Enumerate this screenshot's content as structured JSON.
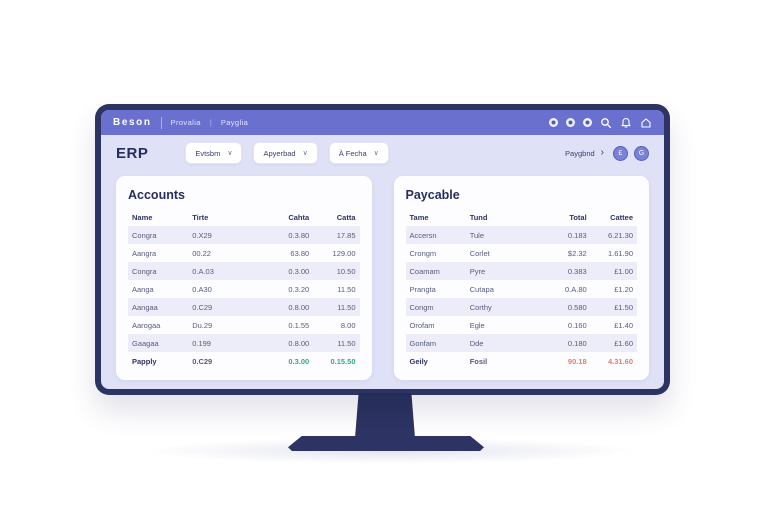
{
  "app": {
    "logo": "Beson",
    "breadcrumbs": [
      "Provalia",
      "Payglia"
    ],
    "topbar_icon_names": [
      "avatar-dot",
      "avatar-dot",
      "avatar-dot",
      "search-icon",
      "bell-icon",
      "home-icon"
    ]
  },
  "icons": {
    "chevron_down": "∨",
    "chevron_right": "›",
    "breadcrumb_separator": "|",
    "circle_button_a_glyph": "£",
    "circle_button_b_glyph": "G"
  },
  "toolbar": {
    "title": "ERP",
    "dropdowns": [
      {
        "label": "Evtsbm"
      },
      {
        "label": "Apyerbad"
      },
      {
        "label": "À Fecha"
      }
    ],
    "link_label": "Paygbnd"
  },
  "panels": {
    "accounts": {
      "title": "Accounts",
      "table": {
        "columns": [
          "Name",
          "Tirte",
          "Cahta",
          "Catta"
        ],
        "rows": [
          [
            "Congra",
            "0.X29",
            "0.3.80",
            "17.85"
          ],
          [
            "Aangra",
            "00.22",
            "63.80",
            "129.00"
          ],
          [
            "Congra",
            "0.A.03",
            "0.3.00",
            "10.50"
          ],
          [
            "Aanga",
            "0.A30",
            "0.3.20",
            "11.50"
          ],
          [
            "Aangaa",
            "0.C29",
            "0.8.00",
            "11.50"
          ],
          [
            "Aarogaa",
            "Du.29",
            "0.1.55",
            "8.00"
          ],
          [
            "Gaagaa",
            "0.199",
            "0.8.00",
            "11.50"
          ],
          [
            "Papply",
            "0.C29",
            "0.3.00",
            "0.15.50"
          ]
        ],
        "total_color": "#2fa98c"
      }
    },
    "payable": {
      "title": "Paycable",
      "table": {
        "columns": [
          "Tame",
          "Tund",
          "Total",
          "Cattee"
        ],
        "rows": [
          [
            "Accersn",
            "Tule",
            "0.183",
            "6.21.30"
          ],
          [
            "Crongm",
            "Corlet",
            "$2.32",
            "1.61.90"
          ],
          [
            "Coamam",
            "Pyre",
            "0.383",
            "£1.00"
          ],
          [
            "Prangta",
            "Cutapa",
            "0.A.80",
            "£1.20"
          ],
          [
            "Congm",
            "Corthy",
            "0.580",
            "£1.50"
          ],
          [
            "Orofam",
            "Egle",
            "0.160",
            "£1.40"
          ],
          [
            "Gonfam",
            "Dde",
            "0.180",
            "£1.60"
          ],
          [
            "Geily",
            "Fosil",
            "90.18",
            "4.31.60"
          ]
        ],
        "total_color": "#e0806b"
      }
    }
  },
  "colors": {
    "bezel": "#2d3464",
    "topbar": "#6a70ce",
    "app_background": "#dfe1f6",
    "card": "#fdfdff",
    "stripe": "#ecedf8",
    "text_dark": "#272e5e",
    "text_muted": "#565b7d",
    "positive": "#2fa98c",
    "negative": "#e0806b"
  }
}
